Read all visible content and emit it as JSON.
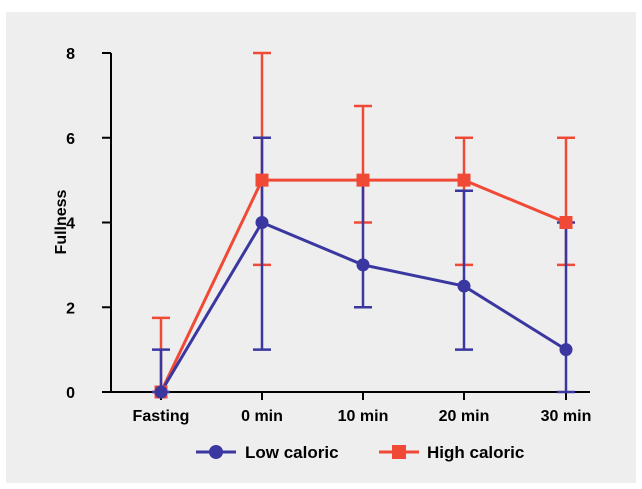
{
  "chart_data": {
    "type": "line",
    "title": "",
    "xlabel": "",
    "ylabel": "Fullness",
    "categories": [
      "Fasting",
      "0 min",
      "10 min",
      "20 min",
      "30 min"
    ],
    "ylim": [
      0,
      8
    ],
    "yticks": [
      0,
      2,
      4,
      6,
      8
    ],
    "grid": false,
    "legend_position": "bottom",
    "series": [
      {
        "name": "Low caloric",
        "color": "#3a37a0",
        "marker": "circle",
        "values": [
          0,
          4,
          3,
          2.5,
          1
        ],
        "error_low": [
          0,
          1,
          2,
          1,
          0
        ],
        "error_high": [
          1,
          6,
          5,
          4.75,
          4
        ]
      },
      {
        "name": "High caloric",
        "color": "#f04a37",
        "marker": "square",
        "values": [
          0,
          5,
          5,
          5,
          4
        ],
        "error_low": [
          0,
          3,
          4,
          3,
          3
        ],
        "error_high": [
          1.75,
          8,
          6.75,
          6,
          6
        ]
      }
    ]
  }
}
